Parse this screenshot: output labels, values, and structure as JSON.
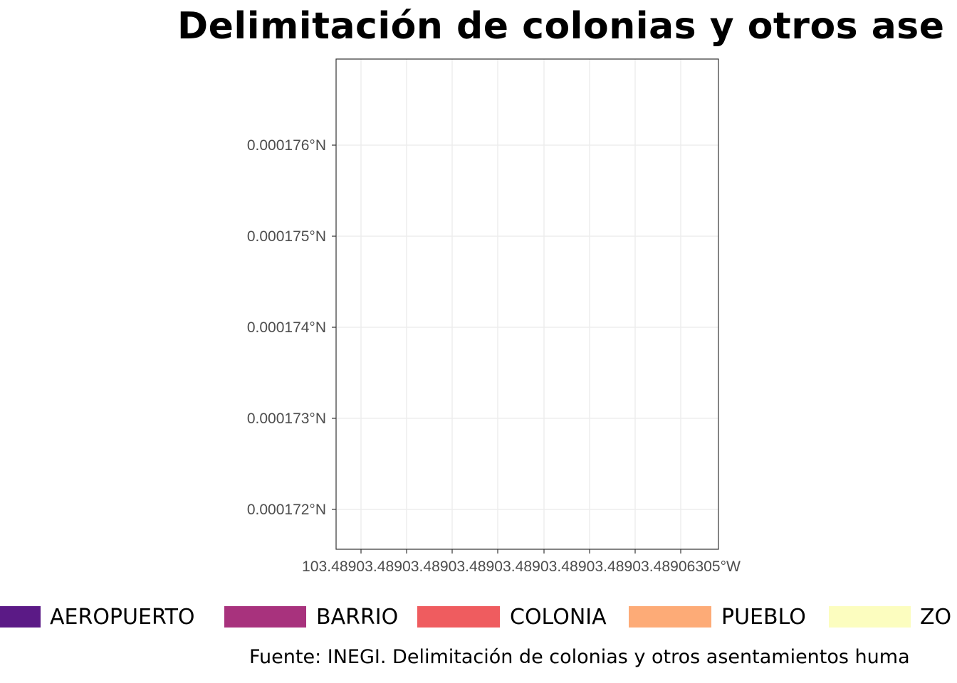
{
  "title": "Delimitación de colonias y otros ase",
  "caption": "Fuente: INEGI. Delimitación de colonias y otros asentamientos huma",
  "map": {
    "y_ticks": [
      "0.000176°N",
      "0.000175°N",
      "0.000174°N",
      "0.000173°N",
      "0.000172°N"
    ],
    "x_ticks_overlapping_text": "103.48903.48903.48903.48903.48903.48903.48903.48906305°W",
    "x_tick_count": 8,
    "panel_fill": "#ffffff",
    "grid_color": "#ebebeb",
    "border_color": "#333333",
    "axis_text_color": "#4d4d4d"
  },
  "legend": {
    "items": [
      {
        "label": "",
        "color": "#5b1a86"
      },
      {
        "label": "AEROPUERTO",
        "color": "#a8327d"
      },
      {
        "label": "BARRIO",
        "color": "#ef5c5f"
      },
      {
        "label": "COLONIA",
        "color": "#fdab77"
      },
      {
        "label": "PUEBLO",
        "color": "#fcfdbf"
      },
      {
        "label": "ZO",
        "color": ""
      }
    ]
  }
}
